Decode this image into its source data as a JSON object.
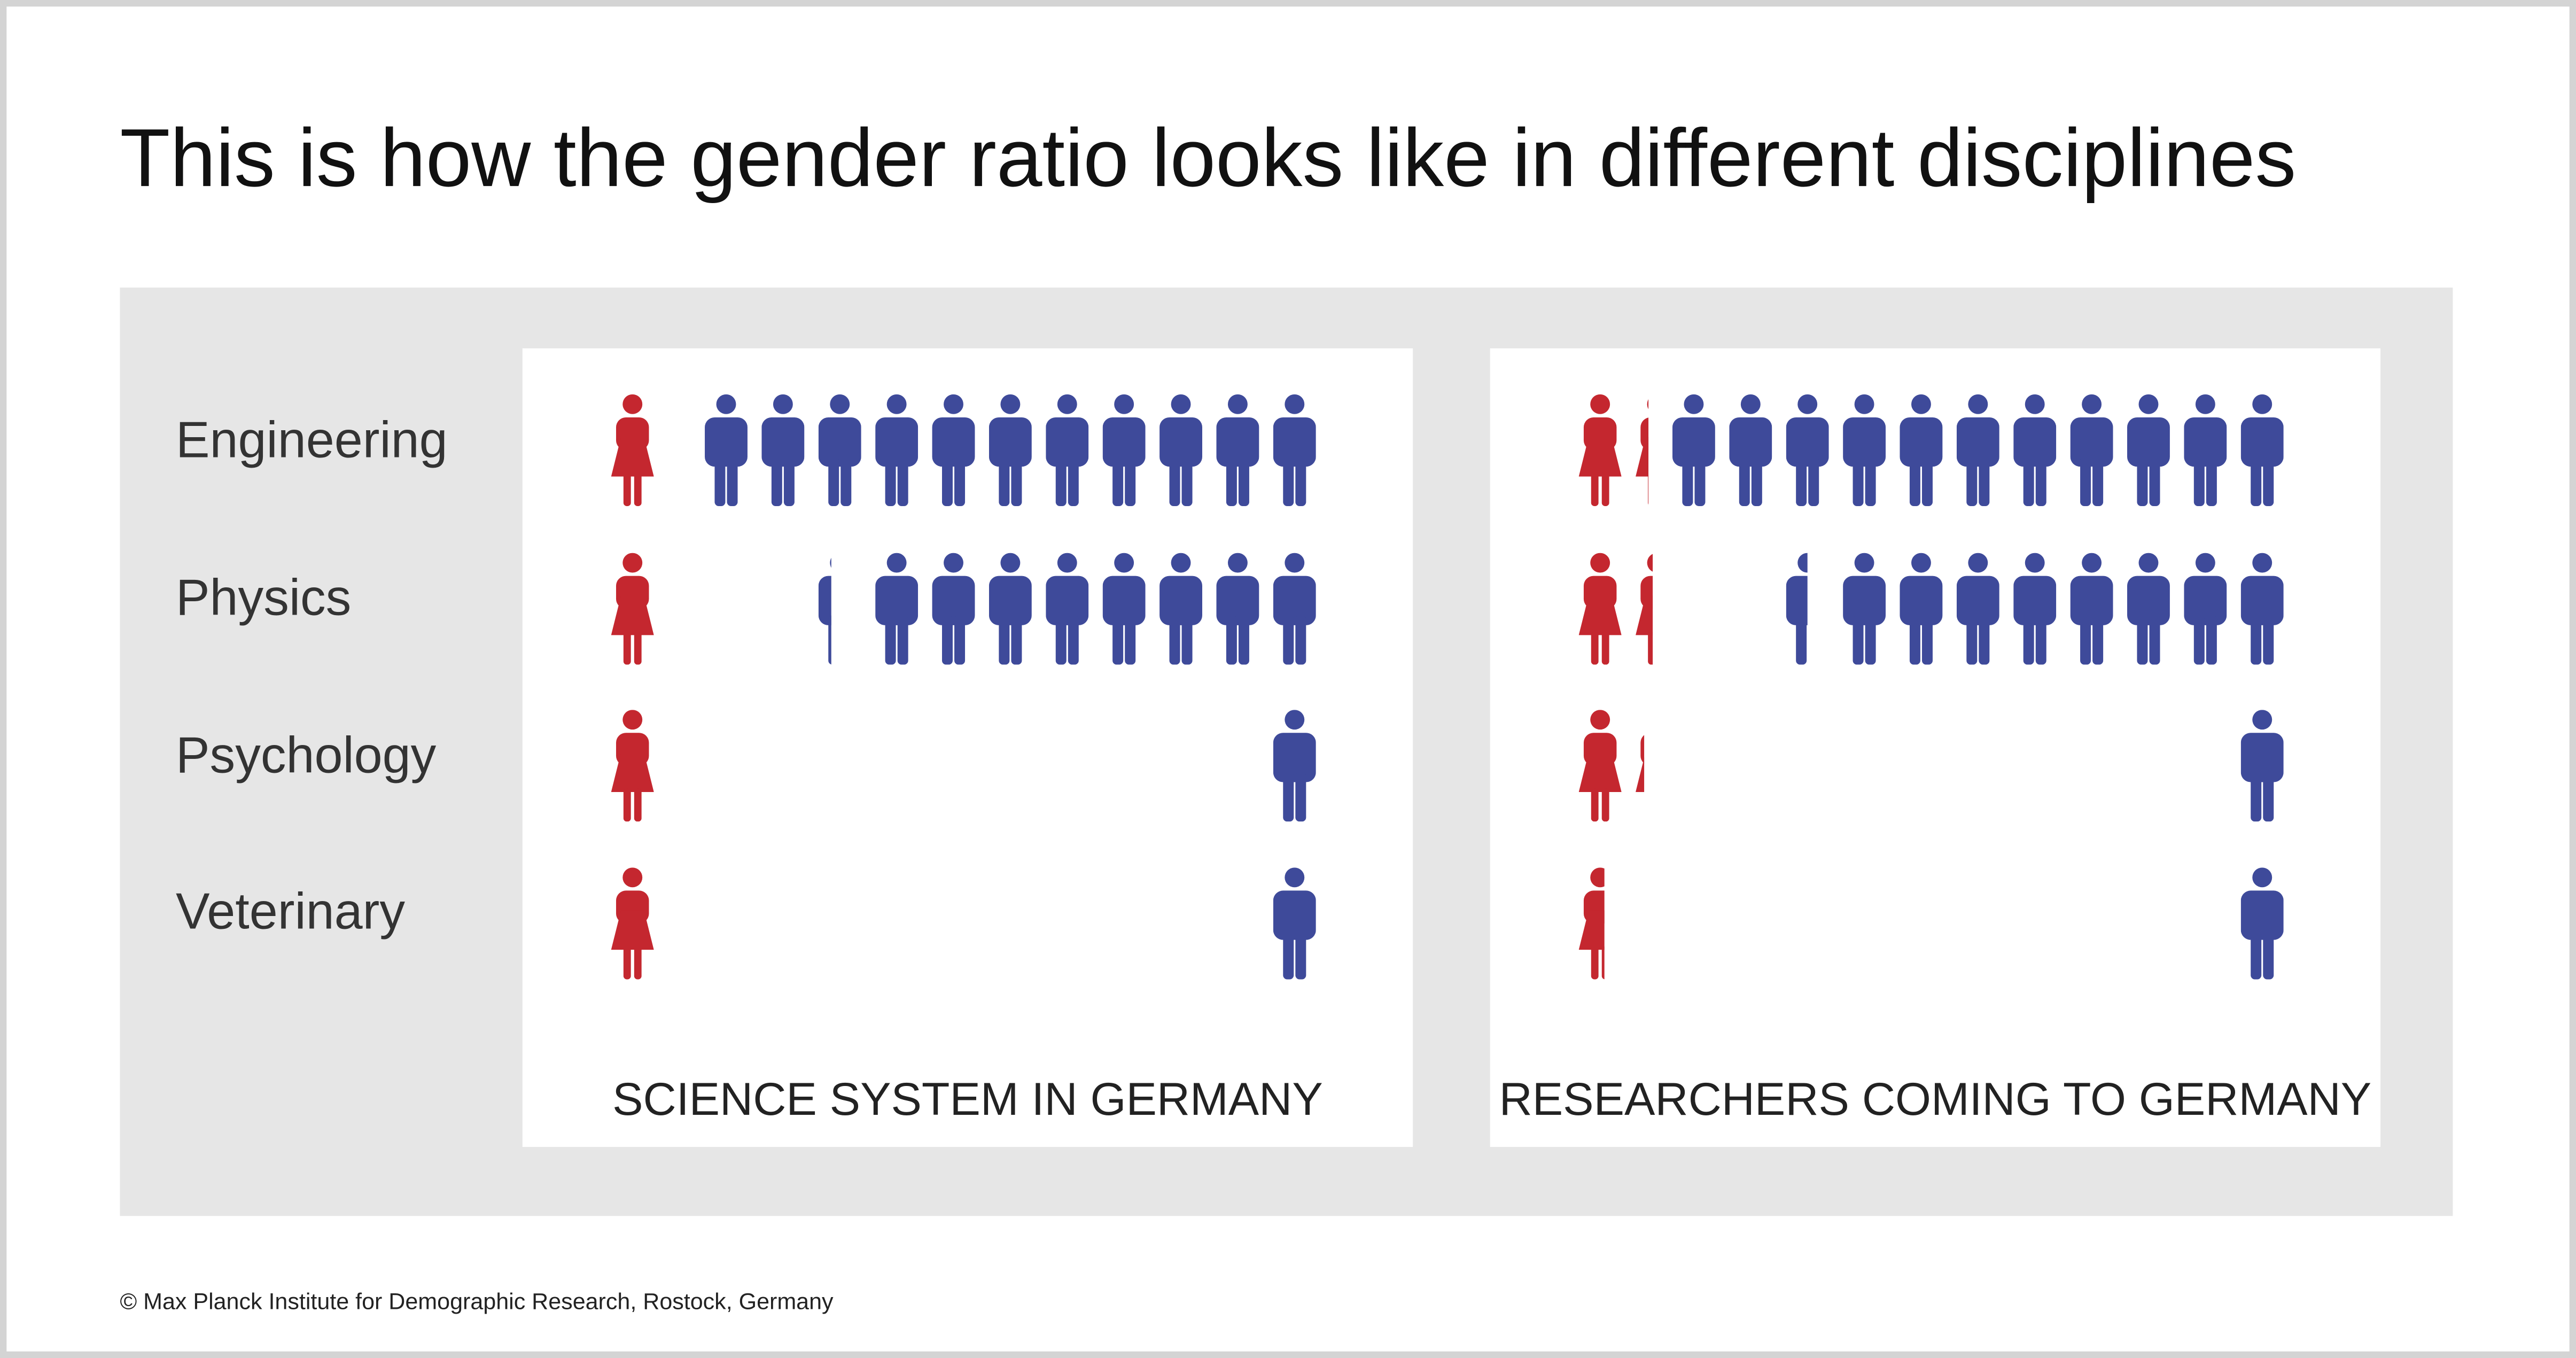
{
  "title": "This is how the gender ratio looks like in different disciplines",
  "source": "© Max Planck Institute for Demographic Research, Rostock, Germany",
  "chart_data": [
    {
      "type": "pictogram",
      "title": "SCIENCE SYSTEM IN GERMANY",
      "categories": [
        "Engineering",
        "Physics",
        "Psychology",
        "Veterinary"
      ],
      "series": [
        {
          "color": "#c4272f",
          "values": [
            1,
            1,
            1,
            1
          ]
        },
        {
          "color": "#3e4a9a",
          "values": [
            11,
            8.3,
            1,
            1
          ]
        }
      ]
    },
    {
      "type": "pictogram",
      "title": "RESEARCHERS COMING TO GERMANY",
      "series": [
        {
          "color": "#c4272f",
          "values": [
            1.3,
            1.4,
            1.2,
            0.6
          ]
        },
        {
          "color": "#3e4a9a",
          "values": [
            11,
            8.5,
            1,
            1
          ]
        }
      ]
    }
  ]
}
